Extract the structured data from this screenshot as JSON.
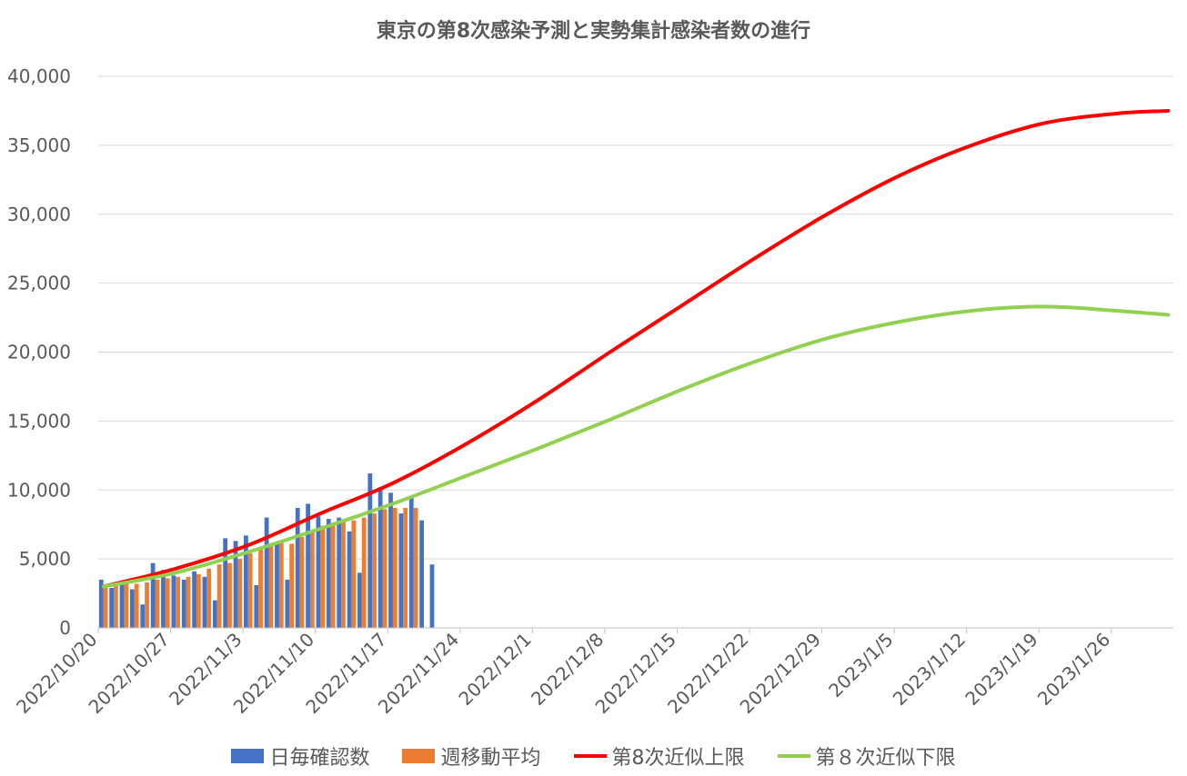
{
  "chart_data": {
    "type": "bar+line",
    "title": "東京の第8次感染予測と実勢集計感染者数の進行",
    "ylim": [
      0,
      40000
    ],
    "y_ticks": [
      0,
      5000,
      10000,
      15000,
      20000,
      25000,
      30000,
      35000,
      40000
    ],
    "y_tick_labels": [
      "0",
      "5,000",
      "10,000",
      "15,000",
      "20,000",
      "25,000",
      "30,000",
      "35,000",
      "40,000"
    ],
    "x_start": "2022/10/20",
    "x_end": "2023/1/31",
    "x_tick_labels": [
      "2022/10/20",
      "2022/10/27",
      "2022/11/3",
      "2022/11/10",
      "2022/11/17",
      "2022/11/24",
      "2022/12/1",
      "2022/12/8",
      "2022/12/15",
      "2022/12/22",
      "2022/12/29",
      "2023/1/5",
      "2023/1/12",
      "2023/1/19",
      "2023/1/26"
    ],
    "grid": true,
    "legend_position": "bottom",
    "series": [
      {
        "name": "日毎確認数",
        "kind": "bar",
        "color": "#4472C4",
        "values": [
          3500,
          2900,
          3300,
          2800,
          1700,
          4700,
          4200,
          3800,
          3500,
          4100,
          3700,
          2000,
          6500,
          6300,
          6700,
          3100,
          8000,
          6100,
          3500,
          8700,
          9000,
          8100,
          7900,
          8000,
          7000,
          4000,
          11200,
          10200,
          9800,
          8300,
          9500,
          7800,
          4600
        ]
      },
      {
        "name": "週移動平均",
        "kind": "bar",
        "color": "#ED7D31",
        "values": [
          2900,
          3100,
          3200,
          3200,
          3300,
          3500,
          3600,
          3700,
          3700,
          3900,
          4300,
          4600,
          4700,
          5000,
          5400,
          5700,
          6100,
          6300,
          6100,
          6600,
          6900,
          7400,
          7500,
          7800,
          7800,
          8000,
          8300,
          8600,
          8700,
          8700,
          8700,
          null,
          null
        ]
      },
      {
        "name": "第8次近似上限",
        "kind": "line",
        "color": "#FF0000",
        "x": [
          "2022/10/20",
          "2022/10/27",
          "2022/11/3",
          "2022/11/10",
          "2022/11/17",
          "2022/11/24",
          "2022/12/1",
          "2022/12/8",
          "2022/12/15",
          "2022/12/22",
          "2022/12/29",
          "2023/1/5",
          "2023/1/12",
          "2023/1/19",
          "2023/1/26",
          "2023/1/31"
        ],
        "values": [
          3000,
          4300,
          6000,
          8300,
          10500,
          13300,
          16500,
          20000,
          23400,
          26800,
          30000,
          32800,
          35000,
          36600,
          37300,
          37500
        ]
      },
      {
        "name": "第８次近似下限",
        "kind": "line",
        "color": "#92D050",
        "x": [
          "2022/10/20",
          "2022/10/27",
          "2022/11/3",
          "2022/11/10",
          "2022/11/17",
          "2022/11/24",
          "2022/12/1",
          "2022/12/8",
          "2022/12/15",
          "2022/12/22",
          "2022/12/29",
          "2023/1/5",
          "2023/1/12",
          "2023/1/19",
          "2023/1/26",
          "2023/1/31"
        ],
        "values": [
          3000,
          4000,
          5500,
          7200,
          9000,
          11000,
          13000,
          15100,
          17300,
          19300,
          21000,
          22200,
          23000,
          23300,
          23000,
          22700
        ]
      }
    ]
  }
}
